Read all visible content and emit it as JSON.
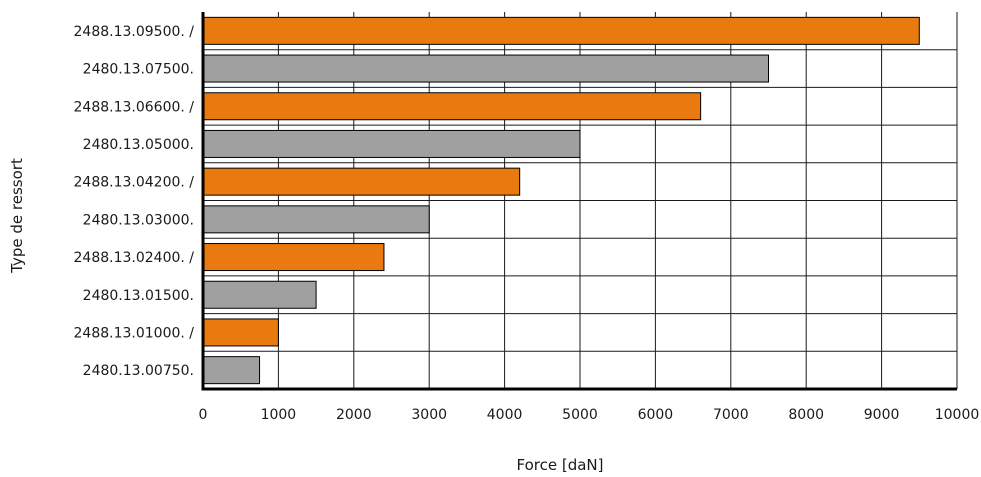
{
  "chart_data": {
    "type": "bar",
    "orientation": "horizontal",
    "xlabel": "Force [daN]",
    "ylabel": "Type de ressort",
    "xlim": [
      0,
      10000
    ],
    "xticks": [
      0,
      1000,
      2000,
      3000,
      4000,
      5000,
      6000,
      7000,
      8000,
      9000,
      10000
    ],
    "grid": true,
    "categories": [
      "2488.13.09500. /",
      "2480.13.07500.",
      "2488.13.06600. /",
      "2480.13.05000.",
      "2488.13.04200. /",
      "2480.13.03000.",
      "2488.13.02400. /",
      "2480.13.01500.",
      "2488.13.01000. /",
      "2480.13.00750."
    ],
    "values": [
      9500,
      7500,
      6600,
      5000,
      4200,
      3000,
      2400,
      1500,
      1000,
      750
    ],
    "bar_colors": [
      "#e87a10",
      "#a0a0a0",
      "#e87a10",
      "#a0a0a0",
      "#e87a10",
      "#a0a0a0",
      "#e87a10",
      "#a0a0a0",
      "#e87a10",
      "#a0a0a0"
    ]
  }
}
